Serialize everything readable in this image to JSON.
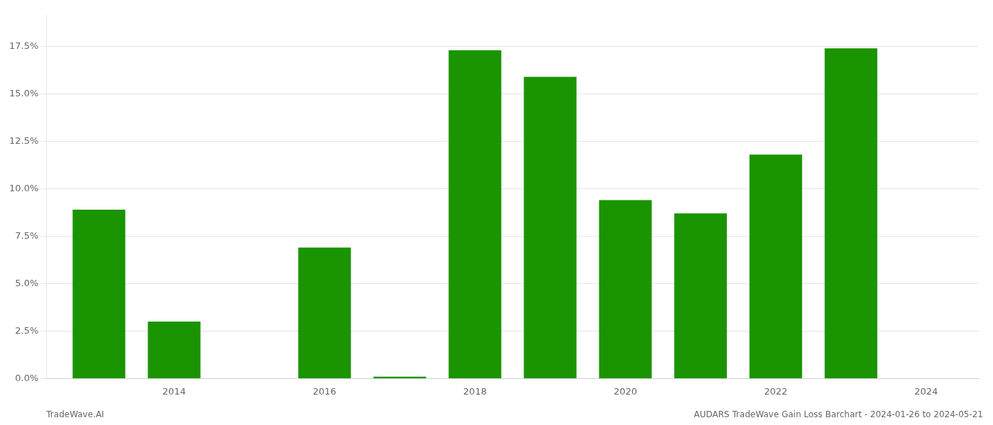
{
  "chart_data": {
    "type": "bar",
    "x": [
      2013,
      2014,
      2015,
      2016,
      2017,
      2018,
      2019,
      2020,
      2021,
      2022,
      2023
    ],
    "values": [
      0.089,
      0.03,
      0.0,
      0.069,
      0.001,
      0.173,
      0.159,
      0.094,
      0.087,
      0.118,
      0.174
    ],
    "color": "#1a9400",
    "xlim": [
      2012.3,
      2024.7
    ],
    "xticks": [
      2014,
      2016,
      2018,
      2020,
      2022,
      2024
    ],
    "ylim": [
      0,
      0.192
    ],
    "yticks": [
      {
        "value": 0.0,
        "label": "0.0%"
      },
      {
        "value": 0.025,
        "label": "2.5%"
      },
      {
        "value": 0.05,
        "label": "5.0%"
      },
      {
        "value": 0.075,
        "label": "7.5%"
      },
      {
        "value": 0.1,
        "label": "10.0%"
      },
      {
        "value": 0.125,
        "label": "12.5%"
      },
      {
        "value": 0.15,
        "label": "15.0%"
      },
      {
        "value": 0.175,
        "label": "17.5%"
      }
    ],
    "grid": "y",
    "annotations": [
      "TradeWave.AI",
      "AUDARS TradeWave Gain Loss Barchart - 2024-01-26 to 2024-05-21"
    ]
  }
}
